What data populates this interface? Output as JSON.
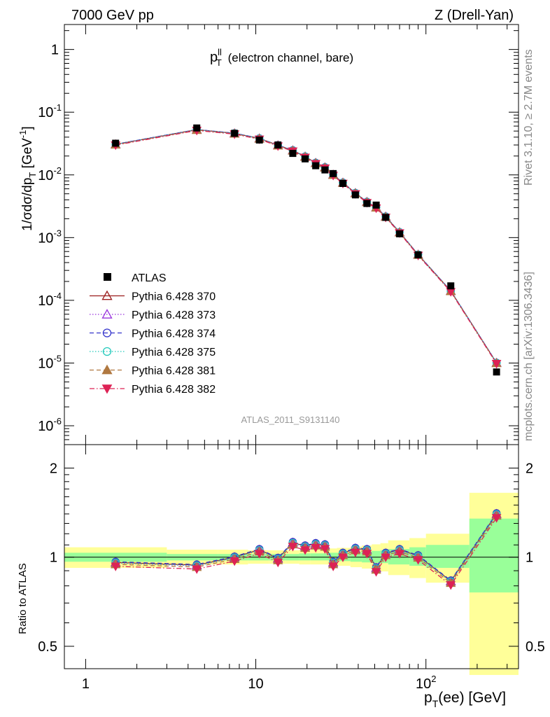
{
  "header": {
    "energy_label": "7000 GeV pp",
    "process_label": "Z (Drell-Yan)"
  },
  "side_labels": {
    "rivet": "Rivet 3.1.10, ≥ 2.7M events",
    "mcplots": "mcplots.cern.ch [arXiv:1306.3436]"
  },
  "watermark": "ATLAS_2011_S9131140",
  "chart_data": [
    {
      "type": "scatter",
      "panel": "main",
      "title_main": "p",
      "title_sup": "ll",
      "title_sub": "T",
      "title_rest": " (electron channel, bare)",
      "ylabel": "1/σdσ/dp",
      "ylabel_sub": "T",
      "ylabel_unit_open": " [GeV",
      "ylabel_unit_sup": "-1",
      "ylabel_unit_close": "]",
      "x_scale": "log",
      "y_scale": "log",
      "xlim": [
        0.75,
        350
      ],
      "ylim": [
        5e-07,
        2.5
      ],
      "y_ticks": [
        {
          "v": 1,
          "base": "1",
          "exp": ""
        },
        {
          "v": 0.1,
          "base": "10",
          "exp": "-1"
        },
        {
          "v": 0.01,
          "base": "10",
          "exp": "-2"
        },
        {
          "v": 0.001,
          "base": "10",
          "exp": "-3"
        },
        {
          "v": 0.0001,
          "base": "10",
          "exp": "-4"
        },
        {
          "v": 1e-05,
          "base": "10",
          "exp": "-5"
        },
        {
          "v": 1e-06,
          "base": "10",
          "exp": "-6"
        }
      ],
      "legend_position": "lower-left",
      "x": [
        1.5,
        4.5,
        7.5,
        10.5,
        13.5,
        16.5,
        19.5,
        22.5,
        25.5,
        28.5,
        32.5,
        38.5,
        45,
        51,
        58,
        70,
        90,
        140,
        260
      ],
      "data": {
        "name": "ATLAS",
        "values": [
          0.032,
          0.056,
          0.046,
          0.036,
          0.03,
          0.022,
          0.018,
          0.014,
          0.012,
          0.0105,
          0.0073,
          0.0048,
          0.0035,
          0.0033,
          0.0021,
          0.00115,
          0.00053,
          0.00017,
          7.2e-06
        ]
      },
      "series": [
        {
          "name": "Pythia 6.428 370",
          "color": "#9b1c1c",
          "marker": "triangle-open",
          "dash": "solid"
        },
        {
          "name": "Pythia 6.428 373",
          "color": "#9933dd",
          "marker": "triangle-open",
          "dash": "dotted"
        },
        {
          "name": "Pythia 6.428 374",
          "color": "#3333cc",
          "marker": "circle-open",
          "dash": "dashed"
        },
        {
          "name": "Pythia 6.428 375",
          "color": "#22c9bb",
          "marker": "circle-open",
          "dash": "dotted"
        },
        {
          "name": "Pythia 6.428 381",
          "color": "#b07840",
          "marker": "triangle-filled",
          "dash": "dashed"
        },
        {
          "name": "Pythia 6.428 382",
          "color": "#dd2255",
          "marker": "triangle-down-filled",
          "dash": "dashdot"
        }
      ],
      "mc_ratio_to_data": [
        0.96,
        0.94,
        1.0,
        1.06,
        0.99,
        1.12,
        1.09,
        1.11,
        1.1,
        0.96,
        1.03,
        1.07,
        1.06,
        0.92,
        1.03,
        1.06,
        1.01,
        0.83,
        1.4
      ],
      "legend_data_label": "ATLAS"
    },
    {
      "type": "line",
      "panel": "ratio",
      "ylabel": "Ratio to ATLAS",
      "xlabel_main": "p",
      "xlabel_sub": "T",
      "xlabel_rest": "(ee) [GeV]",
      "x_scale": "log",
      "y_scale": "log",
      "xlim": [
        0.75,
        350
      ],
      "ylim": [
        0.42,
        2.4
      ],
      "x_tick_labels": [
        {
          "v": 1,
          "base": "1",
          "exp": ""
        },
        {
          "v": 10,
          "base": "10",
          "exp": ""
        },
        {
          "v": 100,
          "base": "10",
          "exp": "2"
        }
      ],
      "y_tick_labels": [
        {
          "v": 2,
          "text": "2"
        },
        {
          "v": 1,
          "text": "1"
        },
        {
          "v": 0.5,
          "text": "0.5"
        }
      ],
      "x": [
        1.5,
        4.5,
        7.5,
        10.5,
        13.5,
        16.5,
        19.5,
        22.5,
        25.5,
        28.5,
        32.5,
        38.5,
        45,
        51,
        58,
        70,
        90,
        140,
        260
      ],
      "ratio_values": [
        0.96,
        0.94,
        1.0,
        1.06,
        0.99,
        1.12,
        1.09,
        1.11,
        1.1,
        0.96,
        1.03,
        1.07,
        1.06,
        0.92,
        1.03,
        1.06,
        1.01,
        0.83,
        1.4
      ],
      "series_offsets": [
        0.0,
        -0.005,
        0.005,
        -0.003,
        -0.015,
        -0.03
      ],
      "bins": [
        {
          "lo": 0.75,
          "hi": 3,
          "stat": [
            0.965,
            1.035
          ],
          "tot": [
            0.92,
            1.08
          ]
        },
        {
          "lo": 3,
          "hi": 6,
          "stat": [
            0.975,
            1.025
          ],
          "tot": [
            0.945,
            1.06
          ]
        },
        {
          "lo": 6,
          "hi": 9,
          "stat": [
            0.975,
            1.025
          ],
          "tot": [
            0.945,
            1.06
          ]
        },
        {
          "lo": 9,
          "hi": 12,
          "stat": [
            0.975,
            1.025
          ],
          "tot": [
            0.95,
            1.055
          ]
        },
        {
          "lo": 12,
          "hi": 15,
          "stat": [
            0.975,
            1.025
          ],
          "tot": [
            0.95,
            1.055
          ]
        },
        {
          "lo": 15,
          "hi": 18,
          "stat": [
            0.975,
            1.025
          ],
          "tot": [
            0.95,
            1.055
          ]
        },
        {
          "lo": 18,
          "hi": 21,
          "stat": [
            0.975,
            1.03
          ],
          "tot": [
            0.945,
            1.06
          ]
        },
        {
          "lo": 21,
          "hi": 24,
          "stat": [
            0.975,
            1.03
          ],
          "tot": [
            0.945,
            1.06
          ]
        },
        {
          "lo": 24,
          "hi": 27,
          "stat": [
            0.975,
            1.03
          ],
          "tot": [
            0.945,
            1.065
          ]
        },
        {
          "lo": 27,
          "hi": 30,
          "stat": [
            0.97,
            1.035
          ],
          "tot": [
            0.94,
            1.07
          ]
        },
        {
          "lo": 30,
          "hi": 36,
          "stat": [
            0.97,
            1.035
          ],
          "tot": [
            0.935,
            1.075
          ]
        },
        {
          "lo": 36,
          "hi": 42,
          "stat": [
            0.965,
            1.04
          ],
          "tot": [
            0.925,
            1.085
          ]
        },
        {
          "lo": 42,
          "hi": 48,
          "stat": [
            0.96,
            1.045
          ],
          "tot": [
            0.915,
            1.095
          ]
        },
        {
          "lo": 48,
          "hi": 54,
          "stat": [
            0.955,
            1.05
          ],
          "tot": [
            0.905,
            1.105
          ]
        },
        {
          "lo": 54,
          "hi": 60,
          "stat": [
            0.955,
            1.055
          ],
          "tot": [
            0.895,
            1.115
          ]
        },
        {
          "lo": 60,
          "hi": 80,
          "stat": [
            0.945,
            1.065
          ],
          "tot": [
            0.87,
            1.14
          ]
        },
        {
          "lo": 80,
          "hi": 100,
          "stat": [
            0.935,
            1.08
          ],
          "tot": [
            0.85,
            1.16
          ]
        },
        {
          "lo": 100,
          "hi": 180,
          "stat": [
            0.92,
            1.1
          ],
          "tot": [
            0.82,
            1.2
          ]
        },
        {
          "lo": 180,
          "hi": 350,
          "stat": [
            0.76,
            1.35
          ],
          "tot": [
            0.4,
            1.65
          ]
        }
      ],
      "reference_line": 1
    }
  ],
  "colors": {
    "stat_band": "#99ff99",
    "total_band": "#ffff99",
    "data_marker": "#000000",
    "side_text": "#888888"
  }
}
